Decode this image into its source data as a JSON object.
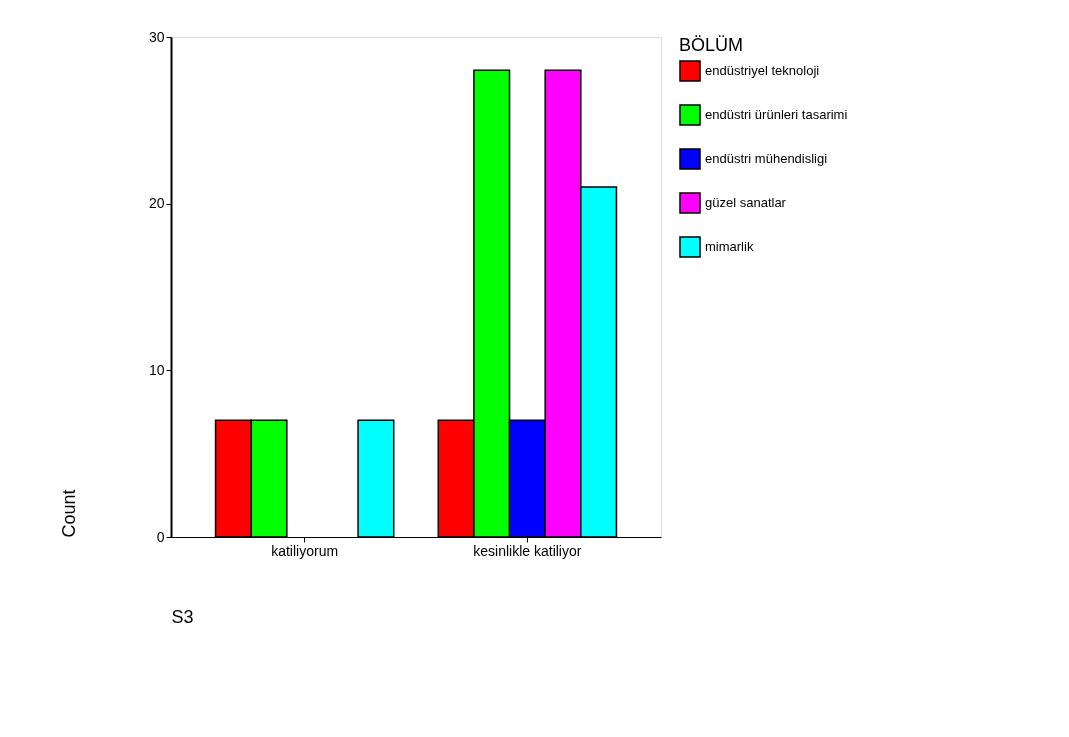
{
  "chart_data": {
    "type": "bar",
    "xlabel": "S3",
    "ylabel": "Count",
    "legend_title": "BÖLÜM",
    "categories": [
      "katiliyorum",
      "kesinlikle katiliyor"
    ],
    "series": [
      {
        "name": "endüstriyel teknoloji",
        "color": "#ff0000",
        "values": [
          7,
          7
        ]
      },
      {
        "name": "endüstri ürünleri tasarimi",
        "color": "#00ff00",
        "values": [
          7,
          28
        ]
      },
      {
        "name": "endüstri mühendisligi",
        "color": "#0000ff",
        "values": [
          null,
          7
        ]
      },
      {
        "name": "güzel sanatlar",
        "color": "#ff00ff",
        "values": [
          null,
          28
        ]
      },
      {
        "name": "mimarlik",
        "color": "#00ffff",
        "values": [
          7,
          21
        ]
      }
    ],
    "ylim": [
      0,
      30
    ],
    "yticks": [
      0,
      10,
      20,
      30
    ],
    "grid": false,
    "legend": "right"
  }
}
